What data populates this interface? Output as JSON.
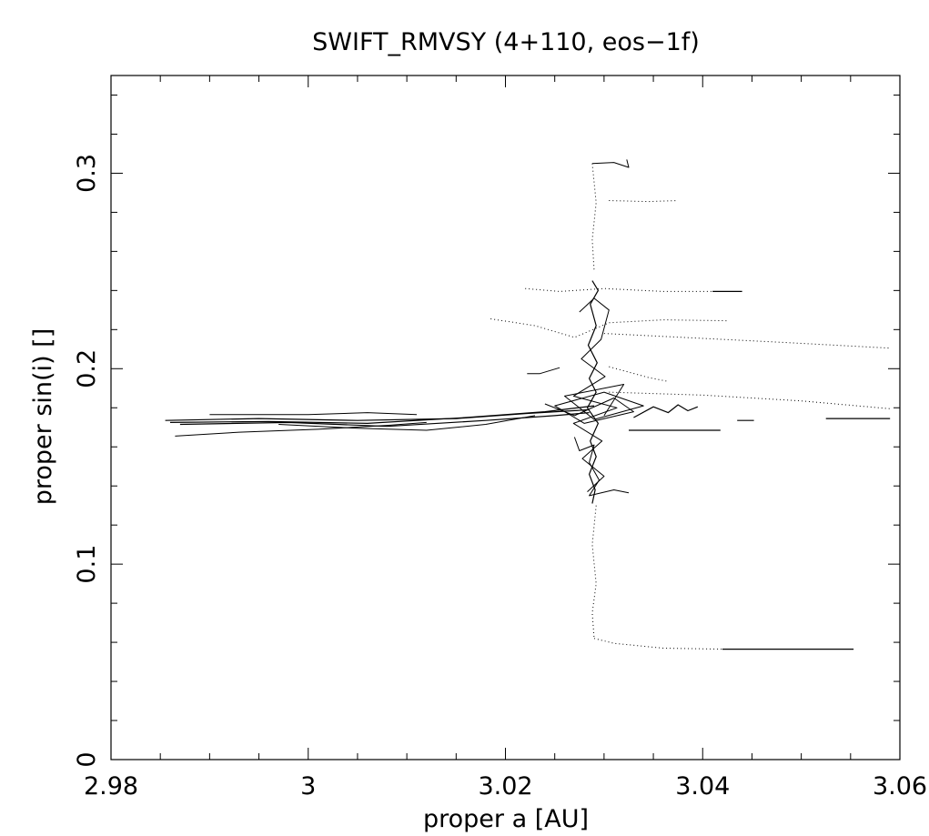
{
  "chart_data": {
    "type": "line",
    "title": "SWIFT_RMVSY (4+110, eos−1f)",
    "xlabel": "proper a [AU]",
    "ylabel": "proper sin(i) []",
    "xlim": [
      2.98,
      3.06
    ],
    "ylim": [
      0,
      0.35
    ],
    "xticks": [
      {
        "value": 2.98,
        "label": "2.98"
      },
      {
        "value": 3.0,
        "label": "3"
      },
      {
        "value": 3.02,
        "label": "3.02"
      },
      {
        "value": 3.04,
        "label": "3.04"
      },
      {
        "value": 3.06,
        "label": "3.06"
      }
    ],
    "yticks": [
      {
        "value": 0,
        "label": "0"
      },
      {
        "value": 0.1,
        "label": "0.1"
      },
      {
        "value": 0.2,
        "label": "0.2"
      },
      {
        "value": 0.3,
        "label": "0.3"
      }
    ],
    "x_minor_step": 0.005,
    "y_minor_step": 0.02,
    "grid": false,
    "series": [
      {
        "style": "solid",
        "width": 1.2,
        "points": [
          [
            2.9855,
            0.1735
          ],
          [
            2.995,
            0.1745
          ],
          [
            3.005,
            0.1735
          ],
          [
            3.015,
            0.1745
          ],
          [
            3.022,
            0.177
          ],
          [
            3.0285,
            0.179
          ]
        ]
      },
      {
        "style": "solid",
        "width": 1.2,
        "points": [
          [
            2.986,
            0.1725
          ],
          [
            2.996,
            0.173
          ],
          [
            3.006,
            0.172
          ],
          [
            3.016,
            0.175
          ],
          [
            3.024,
            0.178
          ],
          [
            3.029,
            0.181
          ]
        ]
      },
      {
        "style": "solid",
        "width": 1.2,
        "points": [
          [
            2.987,
            0.1715
          ],
          [
            2.998,
            0.1725
          ],
          [
            3.008,
            0.1705
          ],
          [
            3.018,
            0.1735
          ],
          [
            3.025,
            0.176
          ],
          [
            3.0285,
            0.1775
          ]
        ]
      },
      {
        "style": "solid",
        "width": 1.0,
        "points": [
          [
            2.9865,
            0.1655
          ],
          [
            2.993,
            0.1675
          ],
          [
            3.001,
            0.169
          ],
          [
            3.008,
            0.171
          ],
          [
            3.012,
            0.1725
          ]
        ]
      },
      {
        "style": "solid",
        "width": 1.0,
        "points": [
          [
            2.99,
            0.1765
          ],
          [
            3.0,
            0.1765
          ],
          [
            3.006,
            0.1775
          ],
          [
            3.011,
            0.1765
          ]
        ]
      },
      {
        "style": "solid",
        "width": 1.0,
        "points": [
          [
            2.997,
            0.1715
          ],
          [
            3.005,
            0.1695
          ],
          [
            3.012,
            0.1685
          ],
          [
            3.018,
            0.1715
          ],
          [
            3.023,
            0.176
          ]
        ]
      },
      {
        "style": "solid",
        "width": 1.2,
        "points": [
          [
            3.0288,
            0.245
          ],
          [
            3.0294,
            0.24
          ],
          [
            3.0286,
            0.233
          ],
          [
            3.0292,
            0.222
          ],
          [
            3.0284,
            0.212
          ],
          [
            3.0293,
            0.203
          ],
          [
            3.0285,
            0.195
          ],
          [
            3.0292,
            0.188
          ],
          [
            3.0283,
            0.18
          ],
          [
            3.0294,
            0.172
          ],
          [
            3.0286,
            0.163
          ],
          [
            3.0292,
            0.155
          ],
          [
            3.0285,
            0.146
          ],
          [
            3.0291,
            0.138
          ],
          [
            3.0288,
            0.131
          ]
        ]
      },
      {
        "style": "solid",
        "width": 1.0,
        "points": [
          [
            3.0275,
            0.229
          ],
          [
            3.029,
            0.236
          ],
          [
            3.0305,
            0.23
          ],
          [
            3.0297,
            0.215
          ],
          [
            3.0277,
            0.205
          ],
          [
            3.0301,
            0.196
          ],
          [
            3.0269,
            0.186
          ],
          [
            3.0313,
            0.18
          ],
          [
            3.0269,
            0.172
          ],
          [
            3.0298,
            0.163
          ],
          [
            3.0278,
            0.154
          ],
          [
            3.03,
            0.145
          ],
          [
            3.0283,
            0.137
          ]
        ]
      },
      {
        "style": "solid",
        "width": 1.0,
        "points": [
          [
            3.024,
            0.182
          ],
          [
            3.027,
            0.176
          ],
          [
            3.031,
            0.185
          ],
          [
            3.033,
            0.178
          ],
          [
            3.028,
            0.172
          ],
          [
            3.025,
            0.181
          ],
          [
            3.03,
            0.188
          ],
          [
            3.034,
            0.181
          ],
          [
            3.029,
            0.174
          ],
          [
            3.026,
            0.186
          ],
          [
            3.032,
            0.192
          ],
          [
            3.03,
            0.176
          ]
        ]
      },
      {
        "style": "solid",
        "width": 1.0,
        "points": [
          [
            3.027,
            0.165
          ],
          [
            3.0275,
            0.158
          ],
          [
            3.029,
            0.161
          ],
          [
            3.0285,
            0.152
          ],
          [
            3.0295,
            0.143
          ],
          [
            3.0285,
            0.135
          ],
          [
            3.031,
            0.138
          ],
          [
            3.0325,
            0.1365
          ]
        ]
      },
      {
        "style": "dotted",
        "width": 1.0,
        "points": [
          [
            3.0288,
            0.305
          ],
          [
            3.0292,
            0.285
          ],
          [
            3.0288,
            0.266
          ],
          [
            3.029,
            0.25
          ]
        ]
      },
      {
        "style": "solid",
        "width": 1.0,
        "points": [
          [
            3.0288,
            0.305
          ],
          [
            3.031,
            0.3055
          ],
          [
            3.0325,
            0.303
          ],
          [
            3.0323,
            0.307
          ]
        ]
      },
      {
        "style": "dotted",
        "width": 1.0,
        "points": [
          [
            3.0305,
            0.286
          ],
          [
            3.0345,
            0.2855
          ],
          [
            3.0375,
            0.286
          ]
        ]
      },
      {
        "style": "dotted",
        "width": 1.0,
        "points": [
          [
            3.022,
            0.241
          ],
          [
            3.0255,
            0.2395
          ],
          [
            3.03,
            0.241
          ],
          [
            3.036,
            0.2395
          ],
          [
            3.041,
            0.2395
          ]
        ]
      },
      {
        "style": "solid",
        "width": 1.2,
        "points": [
          [
            3.041,
            0.2395
          ],
          [
            3.044,
            0.2395
          ]
        ]
      },
      {
        "style": "dotted",
        "width": 1.0,
        "points": [
          [
            3.0185,
            0.2255
          ],
          [
            3.023,
            0.222
          ],
          [
            3.027,
            0.216
          ],
          [
            3.0305,
            0.2235
          ],
          [
            3.036,
            0.225
          ],
          [
            3.0425,
            0.2245
          ]
        ]
      },
      {
        "style": "dotted",
        "width": 1.0,
        "points": [
          [
            3.03,
            0.218
          ],
          [
            3.038,
            0.216
          ],
          [
            3.048,
            0.2135
          ],
          [
            3.059,
            0.2105
          ]
        ]
      },
      {
        "style": "dotted",
        "width": 1.0,
        "points": [
          [
            3.0305,
            0.201
          ],
          [
            3.0345,
            0.1955
          ],
          [
            3.0365,
            0.1935
          ]
        ]
      },
      {
        "style": "solid",
        "width": 1.0,
        "points": [
          [
            3.0222,
            0.1975
          ],
          [
            3.0235,
            0.1975
          ],
          [
            3.0255,
            0.2005
          ]
        ]
      },
      {
        "style": "dotted",
        "width": 1.0,
        "points": [
          [
            3.0305,
            0.188
          ],
          [
            3.04,
            0.1865
          ],
          [
            3.05,
            0.1835
          ],
          [
            3.059,
            0.1795
          ]
        ]
      },
      {
        "style": "solid",
        "width": 1.2,
        "points": [
          [
            3.033,
            0.175
          ],
          [
            3.035,
            0.1805
          ],
          [
            3.0365,
            0.1775
          ],
          [
            3.0375,
            0.1815
          ],
          [
            3.0385,
            0.1785
          ],
          [
            3.0395,
            0.1805
          ]
        ]
      },
      {
        "style": "solid",
        "width": 1.2,
        "points": [
          [
            3.0325,
            0.1685
          ],
          [
            3.0375,
            0.1685
          ],
          [
            3.0418,
            0.1685
          ]
        ]
      },
      {
        "style": "solid",
        "width": 1.2,
        "points": [
          [
            3.0435,
            0.1735
          ],
          [
            3.0452,
            0.1735
          ]
        ]
      },
      {
        "style": "solid",
        "width": 1.2,
        "points": [
          [
            3.0525,
            0.1745
          ],
          [
            3.059,
            0.1745
          ]
        ]
      },
      {
        "style": "dotted",
        "width": 1.0,
        "points": [
          [
            3.0292,
            0.13
          ],
          [
            3.0288,
            0.11
          ],
          [
            3.0292,
            0.09
          ],
          [
            3.0288,
            0.075
          ],
          [
            3.029,
            0.062
          ]
        ]
      },
      {
        "style": "dotted",
        "width": 1.0,
        "points": [
          [
            3.029,
            0.062
          ],
          [
            3.031,
            0.0595
          ],
          [
            3.036,
            0.057
          ],
          [
            3.042,
            0.0565
          ]
        ]
      },
      {
        "style": "solid",
        "width": 1.2,
        "points": [
          [
            3.042,
            0.0565
          ],
          [
            3.0505,
            0.0565
          ],
          [
            3.0553,
            0.0565
          ]
        ]
      }
    ]
  }
}
